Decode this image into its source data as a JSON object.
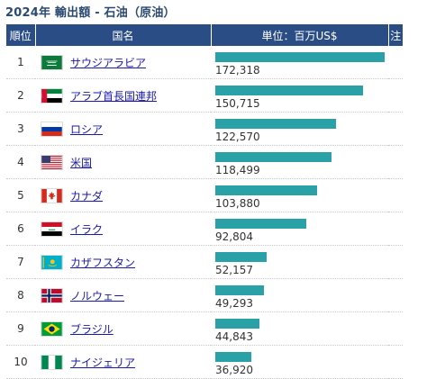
{
  "title": "2024年 輸出額 - 石油（原油）",
  "headers": {
    "rank": "順位",
    "name": "国名",
    "value": "単位：百万US$",
    "note": "注"
  },
  "colors": {
    "header_bg": "#2b4d86",
    "bar": "#2aa0a7",
    "link": "#1a1aa8"
  },
  "rows": [
    {
      "rank": "1",
      "name": "サウジアラビア",
      "flag": "saudi-arabia-flag-icon",
      "value": 172318,
      "value_text": "172,318"
    },
    {
      "rank": "2",
      "name": "アラブ首長国連邦",
      "flag": "uae-flag-icon",
      "value": 150715,
      "value_text": "150,715"
    },
    {
      "rank": "3",
      "name": "ロシア",
      "flag": "russia-flag-icon",
      "value": 122570,
      "value_text": "122,570"
    },
    {
      "rank": "4",
      "name": "米国",
      "flag": "usa-flag-icon",
      "value": 118499,
      "value_text": "118,499"
    },
    {
      "rank": "5",
      "name": "カナダ",
      "flag": "canada-flag-icon",
      "value": 103880,
      "value_text": "103,880"
    },
    {
      "rank": "6",
      "name": "イラク",
      "flag": "iraq-flag-icon",
      "value": 92804,
      "value_text": "92,804"
    },
    {
      "rank": "7",
      "name": "カザフスタン",
      "flag": "kazakhstan-flag-icon",
      "value": 52157,
      "value_text": "52,157"
    },
    {
      "rank": "8",
      "name": "ノルウェー",
      "flag": "norway-flag-icon",
      "value": 49293,
      "value_text": "49,293"
    },
    {
      "rank": "9",
      "name": "ブラジル",
      "flag": "brazil-flag-icon",
      "value": 44843,
      "value_text": "44,843"
    },
    {
      "rank": "10",
      "name": "ナイジェリア",
      "flag": "nigeria-flag-icon",
      "value": 36920,
      "value_text": "36,920"
    }
  ]
}
